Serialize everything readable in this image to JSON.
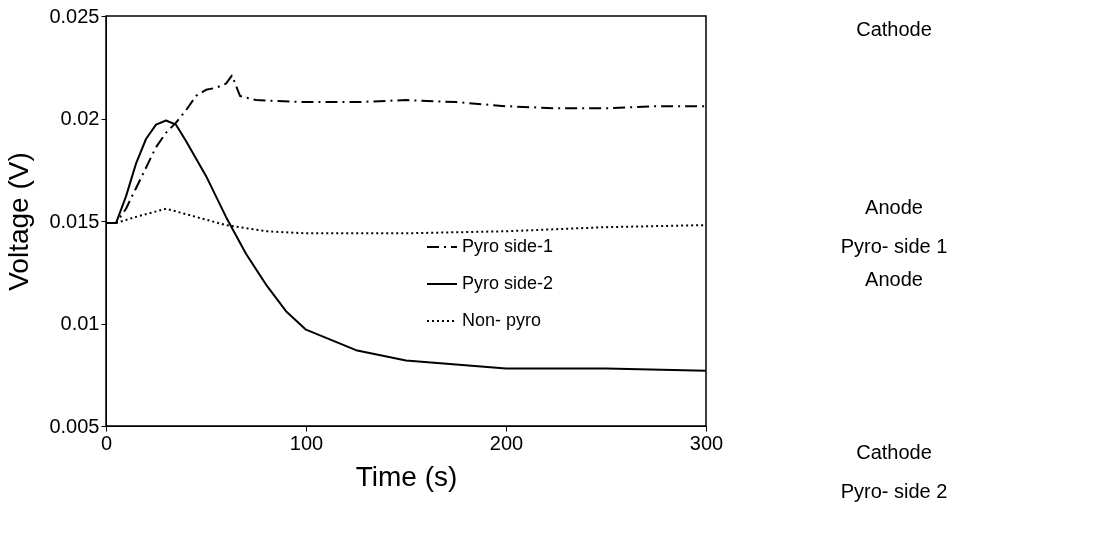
{
  "chart_data": {
    "type": "line",
    "xlabel": "Time (s)",
    "ylabel": "Voltage (V)",
    "xlim": [
      0,
      300
    ],
    "xticks": [
      0,
      100,
      200,
      300
    ],
    "ylim": [
      0.005,
      0.025
    ],
    "yticks": [
      0.005,
      0.01,
      0.015,
      0.02,
      0.025
    ],
    "grid": false,
    "legend": "right",
    "marker": "none",
    "series": [
      {
        "name": "Pyro side-1",
        "color": "#000000",
        "line_style": "dashdot",
        "x": [
          0,
          5,
          10,
          15,
          20,
          25,
          30,
          35,
          40,
          45,
          50,
          55,
          60,
          63,
          67,
          75,
          100,
          125,
          150,
          175,
          200,
          225,
          250,
          275,
          300
        ],
        "values": [
          0.0149,
          0.0149,
          0.0156,
          0.0166,
          0.0176,
          0.0186,
          0.0193,
          0.0198,
          0.0204,
          0.0211,
          0.0214,
          0.0215,
          0.0217,
          0.0221,
          0.0211,
          0.0209,
          0.0208,
          0.0208,
          0.0209,
          0.0208,
          0.0206,
          0.0205,
          0.0205,
          0.0206,
          0.0206
        ]
      },
      {
        "name": "Pyro side-2",
        "color": "#000000",
        "line_style": "solid",
        "x": [
          0,
          5,
          10,
          15,
          20,
          25,
          30,
          35,
          40,
          50,
          60,
          70,
          80,
          90,
          100,
          125,
          150,
          175,
          200,
          250,
          300
        ],
        "values": [
          0.0149,
          0.0149,
          0.0162,
          0.0178,
          0.019,
          0.0197,
          0.0199,
          0.0197,
          0.0189,
          0.0172,
          0.0152,
          0.0134,
          0.0119,
          0.0106,
          0.0097,
          0.0087,
          0.0082,
          0.008,
          0.0078,
          0.0078,
          0.0077
        ]
      },
      {
        "name": "Non- pyro",
        "color": "#000000",
        "line_style": "dotted",
        "x": [
          0,
          5,
          15,
          30,
          45,
          60,
          80,
          100,
          150,
          200,
          250,
          300
        ],
        "values": [
          0.0149,
          0.0149,
          0.0152,
          0.0156,
          0.0152,
          0.0148,
          0.0145,
          0.0144,
          0.0144,
          0.0145,
          0.0147,
          0.0148
        ]
      }
    ],
    "annotations": [
      "Cathode",
      "Anode",
      "Pyro- side 1",
      "Anode",
      "Cathode",
      "Pyro- side 2"
    ]
  }
}
